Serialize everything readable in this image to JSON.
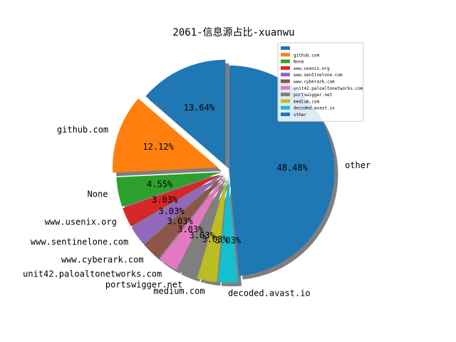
{
  "chart_data": {
    "type": "pie",
    "title": "2061-信息源占比-xuanwu",
    "start_angle_deg": 90,
    "direction": "counterclockwise",
    "exploded": true,
    "shadow": true,
    "legend_position": "top-right",
    "slices": [
      {
        "label": "",
        "value": 13.64,
        "pct_label": "13.64%",
        "color": "#1f77b4"
      },
      {
        "label": "github.com",
        "value": 12.12,
        "pct_label": "12.12%",
        "color": "#ff7f0e"
      },
      {
        "label": "None",
        "value": 4.55,
        "pct_label": "4.55%",
        "color": "#2ca02c"
      },
      {
        "label": "www.usenix.org",
        "value": 3.03,
        "pct_label": "3.03%",
        "color": "#d62728"
      },
      {
        "label": "www.sentinelone.com",
        "value": 3.03,
        "pct_label": "3.03%",
        "color": "#9467bd"
      },
      {
        "label": "www.cyberark.com",
        "value": 3.03,
        "pct_label": "3.03%",
        "color": "#8c564b"
      },
      {
        "label": "unit42.paloaltonetworks.com",
        "value": 3.03,
        "pct_label": "3.03%",
        "color": "#e377c2"
      },
      {
        "label": "portswigger.net",
        "value": 3.03,
        "pct_label": "3.03%",
        "color": "#7f7f7f"
      },
      {
        "label": "medium.com",
        "value": 3.03,
        "pct_label": "3.03%",
        "color": "#bcbd22"
      },
      {
        "label": "decoded.avast.io",
        "value": 3.03,
        "pct_label": "3.03%",
        "color": "#17becf"
      },
      {
        "label": "other",
        "value": 48.48,
        "pct_label": "48.48%",
        "color": "#1f77b4"
      }
    ]
  }
}
